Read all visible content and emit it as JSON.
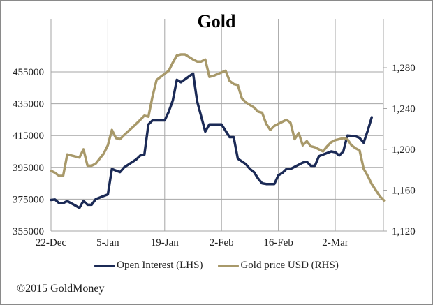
{
  "chart_data": {
    "type": "line",
    "title": "Gold",
    "xlabel": "",
    "ylabel_left": "Open Interest",
    "ylabel_right": "Gold price USD",
    "x_tick_labels": [
      "22-Dec",
      "5-Jan",
      "19-Jan",
      "2-Feb",
      "16-Feb",
      "2-Mar"
    ],
    "y_left": {
      "ticks": [
        "355000",
        "375000",
        "395000",
        "415000",
        "435000",
        "455000"
      ],
      "ylim": [
        355000,
        470000
      ]
    },
    "y_right": {
      "ticks": [
        "1,120",
        "1,160",
        "1,200",
        "1,240",
        "1,280"
      ],
      "ylim": [
        1120,
        1300
      ]
    },
    "grid": true,
    "legend_position": "bottom",
    "series": [
      {
        "name": "Open Interest (LHS)",
        "axis": "left",
        "color": "#1b2a56",
        "points_day_value": [
          [
            0,
            374500
          ],
          [
            1,
            374800
          ],
          [
            2,
            372500
          ],
          [
            3,
            372500
          ],
          [
            4,
            373800
          ],
          [
            6,
            371000
          ],
          [
            7,
            369500
          ],
          [
            8,
            374000
          ],
          [
            9,
            371500
          ],
          [
            10,
            371500
          ],
          [
            11,
            375000
          ],
          [
            13,
            377000
          ],
          [
            14,
            378000
          ],
          [
            15,
            394000
          ],
          [
            16,
            393000
          ],
          [
            17,
            392000
          ],
          [
            18,
            395000
          ],
          [
            21,
            400000
          ],
          [
            22,
            402500
          ],
          [
            23,
            403000
          ],
          [
            24,
            422000
          ],
          [
            25,
            424500
          ],
          [
            26,
            424500
          ],
          [
            28,
            424500
          ],
          [
            29,
            430000
          ],
          [
            30,
            437000
          ],
          [
            31,
            450000
          ],
          [
            32,
            448500
          ],
          [
            35,
            454000
          ],
          [
            36,
            436500
          ],
          [
            37,
            427000
          ],
          [
            38,
            417500
          ],
          [
            39,
            422000
          ],
          [
            42,
            422000
          ],
          [
            43,
            418000
          ],
          [
            44,
            414000
          ],
          [
            45,
            414000
          ],
          [
            46,
            400500
          ],
          [
            48,
            397000
          ],
          [
            49,
            394000
          ],
          [
            50,
            392000
          ],
          [
            51,
            388000
          ],
          [
            52,
            385000
          ],
          [
            53,
            384500
          ],
          [
            55,
            384500
          ],
          [
            56,
            390000
          ],
          [
            57,
            391500
          ],
          [
            58,
            394000
          ],
          [
            59,
            394000
          ],
          [
            62,
            398000
          ],
          [
            63,
            398500
          ],
          [
            64,
            396000
          ],
          [
            65,
            396000
          ],
          [
            66,
            402000
          ],
          [
            68,
            404000
          ],
          [
            69,
            405000
          ],
          [
            70,
            404500
          ],
          [
            71,
            402500
          ],
          [
            72,
            405000
          ],
          [
            73,
            415000
          ],
          [
            75,
            414500
          ],
          [
            76,
            413500
          ],
          [
            77,
            410500
          ],
          [
            78,
            418000
          ],
          [
            79,
            426500
          ]
        ]
      },
      {
        "name": "Gold price USD (RHS)",
        "axis": "right",
        "color": "#a8996a",
        "points_day_value": [
          [
            0,
            1179
          ],
          [
            1,
            1177
          ],
          [
            2,
            1174
          ],
          [
            3,
            1174
          ],
          [
            4,
            1195
          ],
          [
            6,
            1193
          ],
          [
            7,
            1192
          ],
          [
            8,
            1200
          ],
          [
            9,
            1184
          ],
          [
            10,
            1184
          ],
          [
            11,
            1186
          ],
          [
            13,
            1196
          ],
          [
            14,
            1204
          ],
          [
            15,
            1219
          ],
          [
            16,
            1211
          ],
          [
            17,
            1210
          ],
          [
            18,
            1214
          ],
          [
            21,
            1225
          ],
          [
            22,
            1229
          ],
          [
            23,
            1233
          ],
          [
            24,
            1232
          ],
          [
            25,
            1252
          ],
          [
            26,
            1268
          ],
          [
            27,
            1271
          ],
          [
            28,
            1274
          ],
          [
            29,
            1277
          ],
          [
            30,
            1285
          ],
          [
            31,
            1292
          ],
          [
            32,
            1293
          ],
          [
            33,
            1293
          ],
          [
            35,
            1288
          ],
          [
            36,
            1286
          ],
          [
            37,
            1286
          ],
          [
            38,
            1288
          ],
          [
            39,
            1271
          ],
          [
            40,
            1272
          ],
          [
            43,
            1277
          ],
          [
            44,
            1267
          ],
          [
            45,
            1264
          ],
          [
            46,
            1263
          ],
          [
            47,
            1250
          ],
          [
            48,
            1246
          ],
          [
            50,
            1241
          ],
          [
            51,
            1237
          ],
          [
            52,
            1236
          ],
          [
            53,
            1225
          ],
          [
            54,
            1219
          ],
          [
            55,
            1223
          ],
          [
            56,
            1225
          ],
          [
            57,
            1227
          ],
          [
            58,
            1229
          ],
          [
            59,
            1226
          ],
          [
            60,
            1210
          ],
          [
            61,
            1216
          ],
          [
            62,
            1204
          ],
          [
            63,
            1208
          ],
          [
            64,
            1203
          ],
          [
            65,
            1202
          ],
          [
            66,
            1200
          ],
          [
            67,
            1198
          ],
          [
            68,
            1203
          ],
          [
            69,
            1207
          ],
          [
            70,
            1209
          ],
          [
            71,
            1210
          ],
          [
            72,
            1211
          ],
          [
            73,
            1210
          ],
          [
            74,
            1204
          ],
          [
            75,
            1201
          ],
          [
            76,
            1199
          ],
          [
            77,
            1181
          ],
          [
            78,
            1174
          ],
          [
            79,
            1166
          ],
          [
            80,
            1160
          ],
          [
            81,
            1154
          ],
          [
            82,
            1150
          ]
        ]
      }
    ]
  },
  "title": "Gold",
  "legend": [
    {
      "label": "Open Interest (LHS)",
      "color": "#1b2a56"
    },
    {
      "label": "Gold price USD (RHS)",
      "color": "#a8996a"
    }
  ],
  "footer": "©2015 GoldMoney"
}
